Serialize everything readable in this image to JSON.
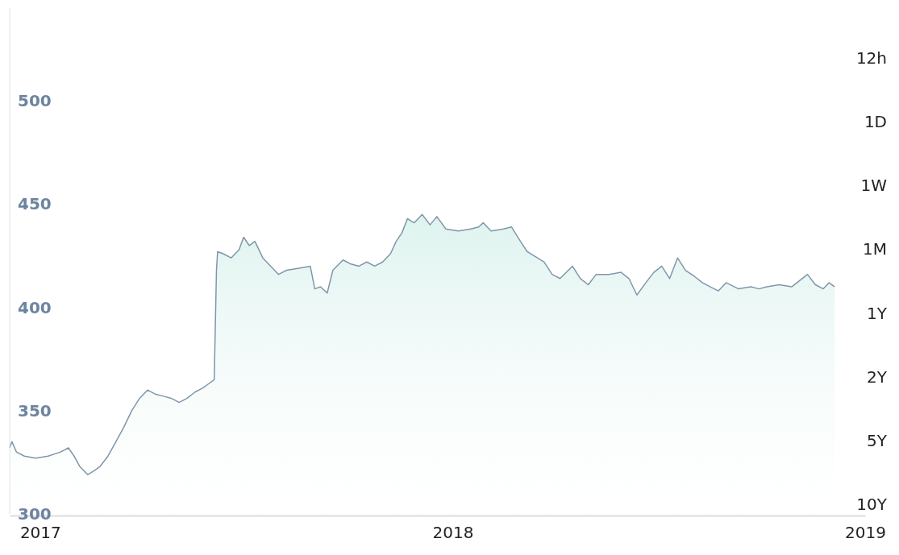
{
  "chart_data": {
    "type": "area",
    "x": [
      "2016-12-05",
      "2016-12-07",
      "2016-12-11",
      "2016-12-18",
      "2016-12-28",
      "2017-01-08",
      "2017-01-19",
      "2017-01-26",
      "2017-01-31",
      "2017-02-05",
      "2017-02-12",
      "2017-02-18",
      "2017-02-23",
      "2017-03-02",
      "2017-03-09",
      "2017-03-16",
      "2017-03-23",
      "2017-03-30",
      "2017-04-06",
      "2017-04-13",
      "2017-04-20",
      "2017-04-27",
      "2017-05-04",
      "2017-05-11",
      "2017-05-18",
      "2017-05-25",
      "2017-05-30",
      "2017-06-04",
      "2017-06-06",
      "2017-06-07",
      "2017-06-12",
      "2017-06-19",
      "2017-06-26",
      "2017-06-30",
      "2017-07-05",
      "2017-07-10",
      "2017-07-17",
      "2017-07-24",
      "2017-07-31",
      "2017-08-07",
      "2017-08-18",
      "2017-08-28",
      "2017-09-01",
      "2017-09-06",
      "2017-09-12",
      "2017-09-17",
      "2017-09-26",
      "2017-10-03",
      "2017-10-10",
      "2017-10-17",
      "2017-10-24",
      "2017-10-31",
      "2017-11-07",
      "2017-11-12",
      "2017-11-17",
      "2017-11-22",
      "2017-11-28",
      "2017-12-05",
      "2017-12-12",
      "2017-12-18",
      "2017-12-26",
      "2018-01-06",
      "2018-01-17",
      "2018-01-24",
      "2018-01-28",
      "2018-02-04",
      "2018-02-15",
      "2018-02-22",
      "2018-03-02",
      "2018-03-08",
      "2018-03-17",
      "2018-03-23",
      "2018-03-30",
      "2018-04-06",
      "2018-04-17",
      "2018-04-24",
      "2018-05-01",
      "2018-05-08",
      "2018-05-19",
      "2018-05-30",
      "2018-06-06",
      "2018-06-13",
      "2018-06-21",
      "2018-06-28",
      "2018-07-05",
      "2018-07-12",
      "2018-07-19",
      "2018-07-26",
      "2018-08-03",
      "2018-08-10",
      "2018-08-17",
      "2018-08-24",
      "2018-08-31",
      "2018-09-11",
      "2018-09-22",
      "2018-09-29",
      "2018-10-06",
      "2018-10-17",
      "2018-10-28",
      "2018-11-11",
      "2018-11-18",
      "2018-11-25",
      "2018-11-30",
      "2018-12-05"
    ],
    "series": [
      {
        "color": "#8096aa",
        "values": [
          332,
          335,
          330,
          328,
          327,
          328,
          330,
          332,
          328,
          323,
          319,
          321,
          323,
          328,
          335,
          342,
          350,
          356,
          360,
          358,
          357,
          356,
          354,
          356,
          359,
          361,
          363,
          365,
          418,
          427,
          426,
          424,
          428,
          434,
          430,
          432,
          424,
          420,
          416,
          418,
          419,
          420,
          409,
          410,
          407,
          418,
          423,
          421,
          420,
          422,
          420,
          422,
          426,
          432,
          436,
          443,
          441,
          445,
          440,
          444,
          438,
          437,
          438,
          439,
          441,
          437,
          438,
          439,
          432,
          427,
          424,
          422,
          416,
          414,
          420,
          414,
          411,
          416,
          416,
          417,
          414,
          406,
          412,
          417,
          420,
          414,
          424,
          418,
          415,
          412,
          410,
          408,
          412,
          409,
          410,
          409,
          410,
          411,
          410,
          416,
          411,
          409,
          412,
          410
        ]
      }
    ],
    "xlim": [
      "2016-12-05",
      "2019-01-01"
    ],
    "xticks": [
      {
        "value": "2017-01-01",
        "label": "2017"
      },
      {
        "value": "2018-01-01",
        "label": "2018"
      },
      {
        "value": "2019-01-01",
        "label": "2019"
      }
    ],
    "ylim": [
      300,
      545
    ],
    "yticks": [
      300,
      350,
      400,
      450,
      500
    ],
    "annotations": [
      "12h",
      "1D",
      "1W",
      "1M",
      "1Y",
      "2Y",
      "5Y",
      "10Y"
    ]
  }
}
